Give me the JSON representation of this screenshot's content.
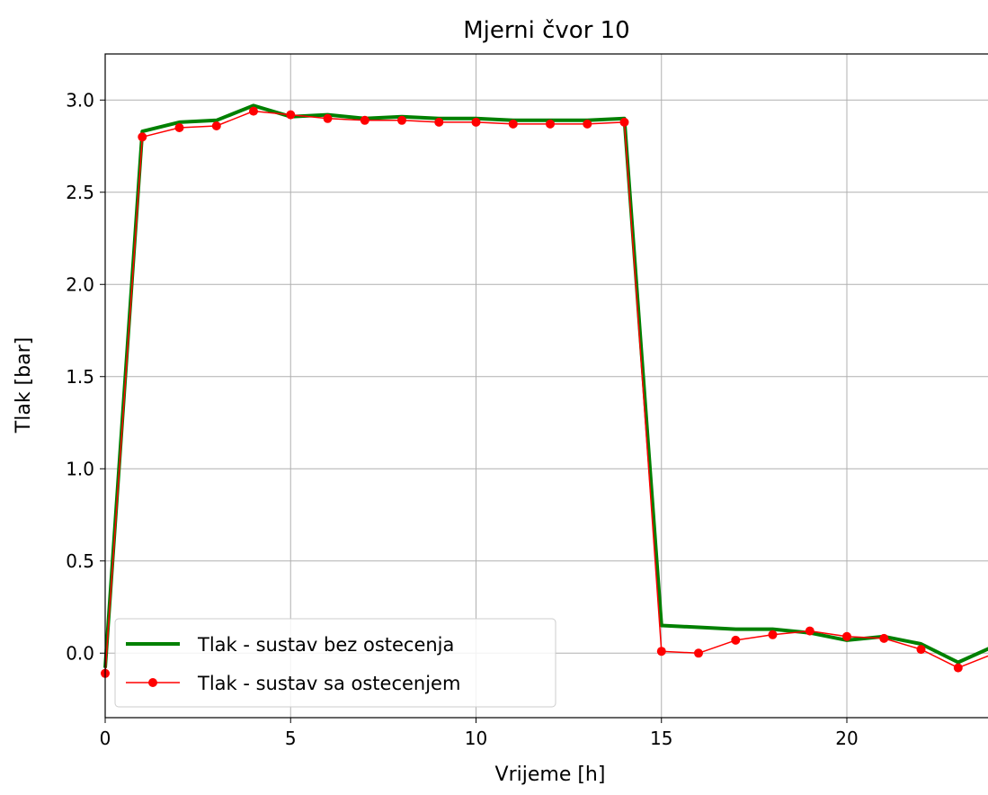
{
  "chart_data": {
    "type": "line",
    "title": "Mjerni čvor 10",
    "xlabel": "Vrijeme [h]",
    "ylabel": "Tlak [bar]",
    "xlim": [
      0,
      24
    ],
    "ylim": [
      -0.35,
      3.25
    ],
    "xticks": [
      0,
      5,
      10,
      15,
      20
    ],
    "xtick_labels": [
      "0",
      "5",
      "10",
      "15",
      "20"
    ],
    "yticks": [
      0.0,
      0.5,
      1.0,
      1.5,
      2.0,
      2.5,
      3.0
    ],
    "ytick_labels": [
      "0.0",
      "0.5",
      "1.0",
      "1.5",
      "2.0",
      "2.5",
      "3.0"
    ],
    "grid": true,
    "legend_position": "lower-left",
    "x": [
      0,
      1,
      2,
      3,
      4,
      5,
      6,
      7,
      8,
      9,
      10,
      11,
      12,
      13,
      14,
      15,
      16,
      17,
      18,
      19,
      20,
      21,
      22,
      23,
      24
    ],
    "series": [
      {
        "name": "Tlak - sustav bez ostecenja",
        "color": "#008000",
        "marker": "none",
        "values": [
          -0.08,
          2.83,
          2.88,
          2.89,
          2.97,
          2.91,
          2.92,
          2.9,
          2.91,
          2.9,
          2.9,
          2.89,
          2.89,
          2.89,
          2.9,
          0.15,
          0.14,
          0.13,
          0.13,
          0.11,
          0.07,
          0.09,
          0.05,
          -0.05,
          0.04
        ]
      },
      {
        "name": "Tlak - sustav sa ostecenjem",
        "color": "#ff0000",
        "marker": "circle",
        "values": [
          -0.11,
          2.8,
          2.85,
          2.86,
          2.94,
          2.92,
          2.9,
          2.89,
          2.89,
          2.88,
          2.88,
          2.87,
          2.87,
          2.87,
          2.88,
          0.01,
          0.0,
          0.07,
          0.1,
          0.12,
          0.09,
          0.08,
          0.02,
          -0.08,
          0.0
        ]
      }
    ]
  }
}
